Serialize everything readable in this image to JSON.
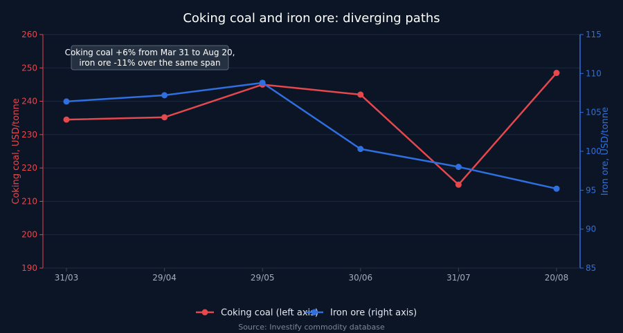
{
  "chart_data": {
    "type": "line",
    "title": "Coking coal and iron ore: diverging paths",
    "categories": [
      "31/03",
      "29/04",
      "29/05",
      "30/06",
      "31/07",
      "20/08"
    ],
    "y_left": {
      "label": "Coking coal, USD/tonne",
      "range": [
        190,
        260
      ],
      "ticks": [
        190,
        200,
        210,
        220,
        230,
        240,
        250,
        260
      ]
    },
    "y_right": {
      "label": "Iron ore, USD/tonne",
      "range": [
        85,
        115
      ],
      "ticks": [
        85,
        90,
        95,
        100,
        105,
        110,
        115
      ]
    },
    "series": [
      {
        "name": "Coking coal (left axis)",
        "axis": "left",
        "color": "#e5484d",
        "values": [
          234.5,
          235.2,
          245.0,
          242.0,
          215.0,
          248.5
        ]
      },
      {
        "name": "Iron ore (right axis)",
        "axis": "right",
        "color": "#2f6fe0",
        "values": [
          106.4,
          107.2,
          108.8,
          100.3,
          98.0,
          95.2
        ]
      }
    ],
    "annotation": {
      "lines": [
        "Coking coal +6% from Mar 31 to Aug 20,",
        "iron ore -11% over the same span"
      ]
    },
    "legend_position": "bottom",
    "grid": true
  },
  "source": "Source: Investify commodity database",
  "colors": {
    "background": "#0b1526",
    "grid": "#1c2a40",
    "left_axis": "#e5484d",
    "right_axis": "#2f6fe0"
  }
}
